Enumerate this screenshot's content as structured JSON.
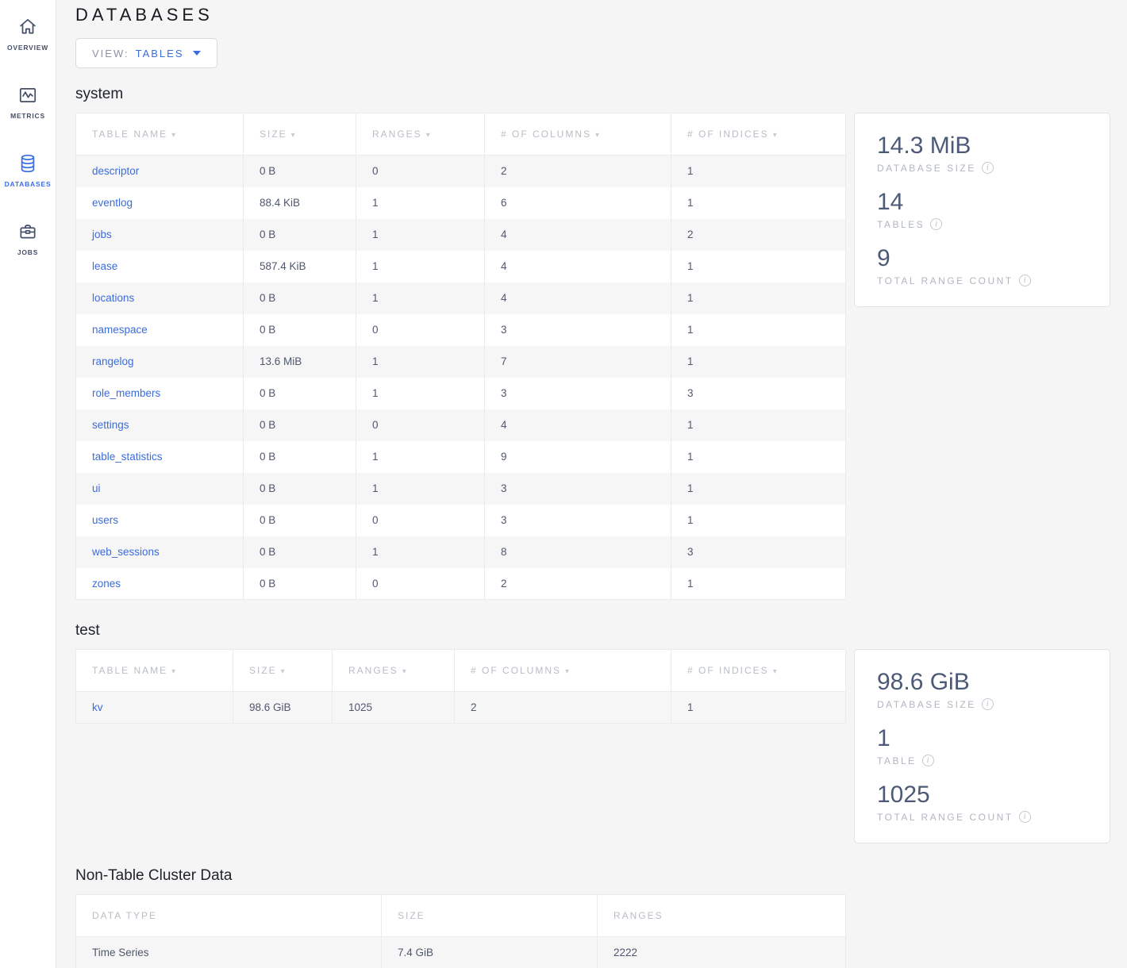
{
  "colors": {
    "accent_blue": "#3b6cdb",
    "sidebar_active_blue": "#3a6fe8",
    "slate_text": "#4f576b",
    "header_gray": "#b9bdc6",
    "page_bg": "#f5f5f6",
    "stripe_row": "#f6f6f7"
  },
  "sidebar": {
    "items": [
      {
        "label": "OVERVIEW",
        "icon": "home-icon",
        "active": false
      },
      {
        "label": "METRICS",
        "icon": "metrics-icon",
        "active": false
      },
      {
        "label": "DATABASES",
        "icon": "database-icon",
        "active": true
      },
      {
        "label": "JOBS",
        "icon": "briefcase-icon",
        "active": false
      }
    ]
  },
  "header": {
    "title": "DATABASES",
    "view_label": "VIEW:",
    "view_value": "TABLES"
  },
  "sections": {
    "system": {
      "name": "system",
      "columns": [
        "TABLE NAME",
        "SIZE",
        "RANGES",
        "# OF COLUMNS",
        "# OF INDICES"
      ],
      "rows": [
        {
          "name": "descriptor",
          "size": "0 B",
          "ranges": "0",
          "columns": "2",
          "indices": "1"
        },
        {
          "name": "eventlog",
          "size": "88.4 KiB",
          "ranges": "1",
          "columns": "6",
          "indices": "1"
        },
        {
          "name": "jobs",
          "size": "0 B",
          "ranges": "1",
          "columns": "4",
          "indices": "2"
        },
        {
          "name": "lease",
          "size": "587.4 KiB",
          "ranges": "1",
          "columns": "4",
          "indices": "1"
        },
        {
          "name": "locations",
          "size": "0 B",
          "ranges": "1",
          "columns": "4",
          "indices": "1"
        },
        {
          "name": "namespace",
          "size": "0 B",
          "ranges": "0",
          "columns": "3",
          "indices": "1"
        },
        {
          "name": "rangelog",
          "size": "13.6 MiB",
          "ranges": "1",
          "columns": "7",
          "indices": "1"
        },
        {
          "name": "role_members",
          "size": "0 B",
          "ranges": "1",
          "columns": "3",
          "indices": "3"
        },
        {
          "name": "settings",
          "size": "0 B",
          "ranges": "0",
          "columns": "4",
          "indices": "1"
        },
        {
          "name": "table_statistics",
          "size": "0 B",
          "ranges": "1",
          "columns": "9",
          "indices": "1"
        },
        {
          "name": "ui",
          "size": "0 B",
          "ranges": "1",
          "columns": "3",
          "indices": "1"
        },
        {
          "name": "users",
          "size": "0 B",
          "ranges": "0",
          "columns": "3",
          "indices": "1"
        },
        {
          "name": "web_sessions",
          "size": "0 B",
          "ranges": "1",
          "columns": "8",
          "indices": "3"
        },
        {
          "name": "zones",
          "size": "0 B",
          "ranges": "0",
          "columns": "2",
          "indices": "1"
        }
      ],
      "summary": {
        "size_value": "14.3 MiB",
        "size_label": "DATABASE SIZE",
        "tables_value": "14",
        "tables_label": "TABLES",
        "ranges_value": "9",
        "ranges_label": "TOTAL RANGE COUNT"
      }
    },
    "test": {
      "name": "test",
      "columns": [
        "TABLE NAME",
        "SIZE",
        "RANGES",
        "# OF COLUMNS",
        "# OF INDICES"
      ],
      "rows": [
        {
          "name": "kv",
          "size": "98.6 GiB",
          "ranges": "1025",
          "columns": "2",
          "indices": "1"
        }
      ],
      "summary": {
        "size_value": "98.6 GiB",
        "size_label": "DATABASE SIZE",
        "tables_value": "1",
        "tables_label": "TABLE",
        "ranges_value": "1025",
        "ranges_label": "TOTAL RANGE COUNT"
      }
    },
    "non_table": {
      "name": "Non-Table Cluster Data",
      "columns": [
        "DATA TYPE",
        "SIZE",
        "RANGES"
      ],
      "rows": [
        {
          "type": "Time Series",
          "size": "7.4 GiB",
          "ranges": "2222"
        }
      ]
    }
  },
  "icons": {
    "sort_caret": "▾",
    "info": "i"
  }
}
